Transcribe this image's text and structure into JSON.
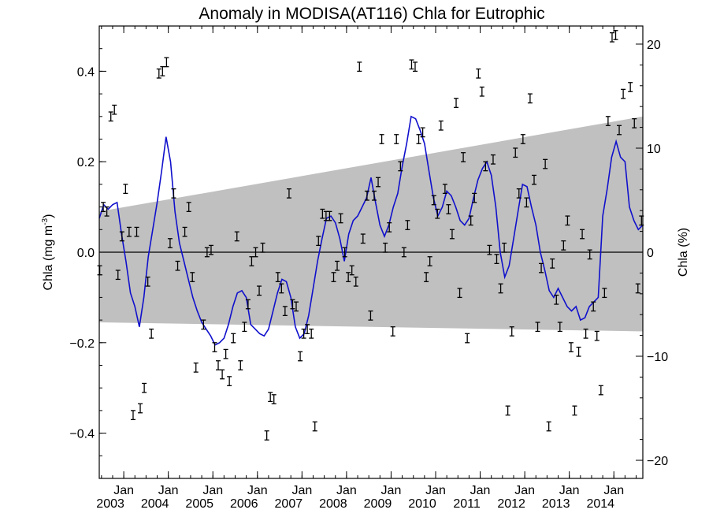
{
  "chart_data": {
    "type": "scatter",
    "title": "Anomaly in MODISA(AT116) Chla for Eutrophic",
    "ylabel_main": "Chla (mg m",
    "ylabel_sup": "-3",
    "ylabel_close": ")",
    "ylabel_right": "Chla (%)",
    "xlim": [
      2002.45,
      2014.65
    ],
    "ylim": [
      -0.5,
      0.5
    ],
    "ylim_right": [
      -21.74,
      21.74
    ],
    "y_ticks": [
      -0.4,
      -0.2,
      0.0,
      0.2,
      0.4
    ],
    "y_tick_labels": [
      "−0.4",
      "−0.2",
      "0.0",
      "0.2",
      "0.4"
    ],
    "y_right_ticks": [
      -20,
      -10,
      0,
      10,
      20
    ],
    "y_right_tick_labels": [
      "−20",
      "−10",
      "0",
      "10",
      "20"
    ],
    "x_ticks": [
      {
        "x": 2003.0,
        "month": "Jan",
        "year": "2003"
      },
      {
        "x": 2004.0,
        "month": "Jan",
        "year": "2004"
      },
      {
        "x": 2005.0,
        "month": "Jan",
        "year": "2005"
      },
      {
        "x": 2006.0,
        "month": "Jan",
        "year": "2006"
      },
      {
        "x": 2007.0,
        "month": "Jan",
        "year": "2007"
      },
      {
        "x": 2008.0,
        "month": "Jan",
        "year": "2008"
      },
      {
        "x": 2009.0,
        "month": "Jan",
        "year": "2009"
      },
      {
        "x": 2010.0,
        "month": "Jan",
        "year": "2010"
      },
      {
        "x": 2011.0,
        "month": "Jan",
        "year": "2011"
      },
      {
        "x": 2012.0,
        "month": "Jan",
        "year": "2012"
      },
      {
        "x": 2013.0,
        "month": "Jan",
        "year": "2013"
      },
      {
        "x": 2014.0,
        "month": "Jan",
        "year": "2014"
      }
    ],
    "zero_line": 0.0,
    "band": {
      "x": [
        2002.45,
        2014.65
      ],
      "upper": [
        0.09,
        0.3
      ],
      "lower": [
        -0.155,
        -0.175
      ],
      "color": "#c0c0c0"
    },
    "error_bar_half_height": 0.01,
    "points": [
      {
        "x": 2002.46,
        "y": -0.04
      },
      {
        "x": 2002.54,
        "y": 0.1
      },
      {
        "x": 2002.62,
        "y": 0.09
      },
      {
        "x": 2002.71,
        "y": 0.3
      },
      {
        "x": 2002.79,
        "y": 0.315
      },
      {
        "x": 2002.87,
        "y": -0.05
      },
      {
        "x": 2002.96,
        "y": 0.035
      },
      {
        "x": 2003.04,
        "y": 0.14
      },
      {
        "x": 2003.12,
        "y": 0.045
      },
      {
        "x": 2003.21,
        "y": -0.36
      },
      {
        "x": 2003.29,
        "y": 0.045
      },
      {
        "x": 2003.37,
        "y": -0.345
      },
      {
        "x": 2003.46,
        "y": -0.3
      },
      {
        "x": 2003.54,
        "y": -0.065
      },
      {
        "x": 2003.62,
        "y": -0.18
      },
      {
        "x": 2003.79,
        "y": 0.395
      },
      {
        "x": 2003.87,
        "y": 0.4
      },
      {
        "x": 2003.96,
        "y": 0.42
      },
      {
        "x": 2004.04,
        "y": 0.02
      },
      {
        "x": 2004.12,
        "y": 0.13
      },
      {
        "x": 2004.21,
        "y": -0.03
      },
      {
        "x": 2004.37,
        "y": 0.045
      },
      {
        "x": 2004.46,
        "y": 0.1
      },
      {
        "x": 2004.54,
        "y": -0.055
      },
      {
        "x": 2004.62,
        "y": -0.255
      },
      {
        "x": 2004.79,
        "y": -0.16
      },
      {
        "x": 2004.87,
        "y": 0.0
      },
      {
        "x": 2004.96,
        "y": 0.005
      },
      {
        "x": 2005.04,
        "y": -0.21
      },
      {
        "x": 2005.12,
        "y": -0.25
      },
      {
        "x": 2005.21,
        "y": -0.27
      },
      {
        "x": 2005.29,
        "y": -0.225
      },
      {
        "x": 2005.37,
        "y": -0.285
      },
      {
        "x": 2005.46,
        "y": -0.19
      },
      {
        "x": 2005.54,
        "y": 0.035
      },
      {
        "x": 2005.62,
        "y": -0.25
      },
      {
        "x": 2005.71,
        "y": -0.165
      },
      {
        "x": 2005.79,
        "y": -0.115
      },
      {
        "x": 2005.87,
        "y": -0.02
      },
      {
        "x": 2005.96,
        "y": 0.0
      },
      {
        "x": 2006.04,
        "y": -0.085
      },
      {
        "x": 2006.12,
        "y": 0.01
      },
      {
        "x": 2006.21,
        "y": -0.405
      },
      {
        "x": 2006.29,
        "y": -0.32
      },
      {
        "x": 2006.37,
        "y": -0.325
      },
      {
        "x": 2006.46,
        "y": -0.055
      },
      {
        "x": 2006.54,
        "y": -0.08
      },
      {
        "x": 2006.62,
        "y": -0.13
      },
      {
        "x": 2006.71,
        "y": 0.13
      },
      {
        "x": 2006.79,
        "y": -0.115
      },
      {
        "x": 2006.87,
        "y": -0.12
      },
      {
        "x": 2006.96,
        "y": -0.23
      },
      {
        "x": 2007.04,
        "y": -0.18
      },
      {
        "x": 2007.12,
        "y": -0.17
      },
      {
        "x": 2007.21,
        "y": -0.18
      },
      {
        "x": 2007.29,
        "y": -0.385
      },
      {
        "x": 2007.37,
        "y": 0.025
      },
      {
        "x": 2007.46,
        "y": 0.085
      },
      {
        "x": 2007.54,
        "y": 0.08
      },
      {
        "x": 2007.62,
        "y": 0.08
      },
      {
        "x": 2007.71,
        "y": -0.055
      },
      {
        "x": 2007.79,
        "y": -0.03
      },
      {
        "x": 2007.87,
        "y": 0.075
      },
      {
        "x": 2007.96,
        "y": 0.0
      },
      {
        "x": 2008.04,
        "y": -0.055
      },
      {
        "x": 2008.12,
        "y": -0.04
      },
      {
        "x": 2008.21,
        "y": -0.065
      },
      {
        "x": 2008.29,
        "y": 0.41
      },
      {
        "x": 2008.37,
        "y": 0.03
      },
      {
        "x": 2008.46,
        "y": 0.125
      },
      {
        "x": 2008.54,
        "y": -0.14
      },
      {
        "x": 2008.62,
        "y": 0.125
      },
      {
        "x": 2008.71,
        "y": 0.155
      },
      {
        "x": 2008.79,
        "y": 0.25
      },
      {
        "x": 2008.87,
        "y": 0.01
      },
      {
        "x": 2008.96,
        "y": 0.055
      },
      {
        "x": 2009.04,
        "y": -0.175
      },
      {
        "x": 2009.12,
        "y": 0.25
      },
      {
        "x": 2009.21,
        "y": 0.19
      },
      {
        "x": 2009.29,
        "y": 0.0
      },
      {
        "x": 2009.37,
        "y": 0.06
      },
      {
        "x": 2009.46,
        "y": 0.415
      },
      {
        "x": 2009.54,
        "y": 0.41
      },
      {
        "x": 2009.62,
        "y": 0.25
      },
      {
        "x": 2009.71,
        "y": 0.265
      },
      {
        "x": 2009.79,
        "y": -0.055
      },
      {
        "x": 2009.87,
        "y": -0.02
      },
      {
        "x": 2009.96,
        "y": 0.115
      },
      {
        "x": 2010.04,
        "y": 0.085
      },
      {
        "x": 2010.12,
        "y": 0.28
      },
      {
        "x": 2010.21,
        "y": 0.14
      },
      {
        "x": 2010.29,
        "y": 0.095
      },
      {
        "x": 2010.37,
        "y": 0.04
      },
      {
        "x": 2010.46,
        "y": 0.33
      },
      {
        "x": 2010.54,
        "y": -0.09
      },
      {
        "x": 2010.62,
        "y": 0.21
      },
      {
        "x": 2010.71,
        "y": -0.19
      },
      {
        "x": 2010.79,
        "y": 0.07
      },
      {
        "x": 2010.87,
        "y": 0.12
      },
      {
        "x": 2010.96,
        "y": 0.395
      },
      {
        "x": 2011.04,
        "y": 0.355
      },
      {
        "x": 2011.12,
        "y": 0.19
      },
      {
        "x": 2011.21,
        "y": 0.005
      },
      {
        "x": 2011.29,
        "y": 0.205
      },
      {
        "x": 2011.37,
        "y": -0.015
      },
      {
        "x": 2011.46,
        "y": -0.08
      },
      {
        "x": 2011.54,
        "y": 0.01
      },
      {
        "x": 2011.62,
        "y": -0.35
      },
      {
        "x": 2011.71,
        "y": -0.175
      },
      {
        "x": 2011.79,
        "y": 0.22
      },
      {
        "x": 2011.87,
        "y": 0.13
      },
      {
        "x": 2011.96,
        "y": 0.25
      },
      {
        "x": 2012.04,
        "y": 0.11
      },
      {
        "x": 2012.12,
        "y": 0.34
      },
      {
        "x": 2012.21,
        "y": 0.16
      },
      {
        "x": 2012.29,
        "y": -0.165
      },
      {
        "x": 2012.37,
        "y": -0.035
      },
      {
        "x": 2012.46,
        "y": 0.195
      },
      {
        "x": 2012.54,
        "y": -0.385
      },
      {
        "x": 2012.62,
        "y": -0.025
      },
      {
        "x": 2012.71,
        "y": -0.105
      },
      {
        "x": 2012.79,
        "y": -0.165
      },
      {
        "x": 2012.87,
        "y": 0.015
      },
      {
        "x": 2012.96,
        "y": 0.07
      },
      {
        "x": 2013.04,
        "y": -0.21
      },
      {
        "x": 2013.12,
        "y": -0.35
      },
      {
        "x": 2013.21,
        "y": -0.22
      },
      {
        "x": 2013.29,
        "y": 0.04
      },
      {
        "x": 2013.37,
        "y": -0.18
      },
      {
        "x": 2013.46,
        "y": -0.005
      },
      {
        "x": 2013.54,
        "y": -0.12
      },
      {
        "x": 2013.62,
        "y": -0.185
      },
      {
        "x": 2013.71,
        "y": -0.305
      },
      {
        "x": 2013.79,
        "y": -0.09
      },
      {
        "x": 2013.87,
        "y": 0.29
      },
      {
        "x": 2013.96,
        "y": 0.475
      },
      {
        "x": 2014.04,
        "y": 0.48
      },
      {
        "x": 2014.12,
        "y": 0.27
      },
      {
        "x": 2014.21,
        "y": 0.35
      },
      {
        "x": 2014.37,
        "y": 0.365
      },
      {
        "x": 2014.46,
        "y": 0.285
      },
      {
        "x": 2014.54,
        "y": -0.08
      },
      {
        "x": 2014.62,
        "y": 0.07
      }
    ],
    "smooth_line": {
      "color": "#1010cc",
      "x": [
        2002.45,
        2002.55,
        2002.65,
        2002.75,
        2002.85,
        2002.95,
        2003.05,
        2003.15,
        2003.25,
        2003.35,
        2003.45,
        2003.55,
        2003.65,
        2003.75,
        2003.85,
        2003.95,
        2004.05,
        2004.15,
        2004.25,
        2004.35,
        2004.45,
        2004.55,
        2004.65,
        2004.75,
        2004.85,
        2004.95,
        2005.05,
        2005.15,
        2005.25,
        2005.35,
        2005.45,
        2005.55,
        2005.65,
        2005.75,
        2005.85,
        2005.95,
        2006.05,
        2006.15,
        2006.25,
        2006.35,
        2006.45,
        2006.55,
        2006.65,
        2006.75,
        2006.85,
        2006.95,
        2007.05,
        2007.15,
        2007.25,
        2007.35,
        2007.45,
        2007.55,
        2007.65,
        2007.75,
        2007.85,
        2007.95,
        2008.05,
        2008.15,
        2008.25,
        2008.35,
        2008.45,
        2008.55,
        2008.65,
        2008.75,
        2008.85,
        2008.95,
        2009.05,
        2009.15,
        2009.25,
        2009.35,
        2009.45,
        2009.55,
        2009.65,
        2009.75,
        2009.85,
        2009.95,
        2010.05,
        2010.15,
        2010.25,
        2010.35,
        2010.45,
        2010.55,
        2010.65,
        2010.75,
        2010.85,
        2010.95,
        2011.05,
        2011.15,
        2011.25,
        2011.35,
        2011.45,
        2011.55,
        2011.65,
        2011.75,
        2011.85,
        2011.95,
        2012.05,
        2012.15,
        2012.25,
        2012.35,
        2012.45,
        2012.55,
        2012.65,
        2012.75,
        2012.85,
        2012.95,
        2013.05,
        2013.15,
        2013.25,
        2013.35,
        2013.45,
        2013.55,
        2013.65,
        2013.75,
        2013.85,
        2013.95,
        2014.05,
        2014.15,
        2014.25,
        2014.35,
        2014.45,
        2014.55,
        2014.65
      ],
      "y": [
        0.075,
        0.105,
        0.095,
        0.105,
        0.11,
        0.04,
        -0.02,
        -0.09,
        -0.12,
        -0.165,
        -0.1,
        -0.01,
        0.05,
        0.11,
        0.18,
        0.255,
        0.2,
        0.09,
        0.02,
        -0.02,
        -0.06,
        -0.1,
        -0.13,
        -0.155,
        -0.17,
        -0.185,
        -0.205,
        -0.2,
        -0.19,
        -0.16,
        -0.12,
        -0.09,
        -0.085,
        -0.1,
        -0.16,
        -0.17,
        -0.18,
        -0.185,
        -0.17,
        -0.13,
        -0.09,
        -0.06,
        -0.065,
        -0.1,
        -0.165,
        -0.19,
        -0.18,
        -0.14,
        -0.08,
        -0.02,
        0.03,
        0.075,
        0.08,
        0.065,
        0.03,
        -0.02,
        0.04,
        0.07,
        0.08,
        0.1,
        0.12,
        0.165,
        0.11,
        0.06,
        0.035,
        0.06,
        0.1,
        0.13,
        0.19,
        0.24,
        0.3,
        0.295,
        0.27,
        0.24,
        0.18,
        0.12,
        0.08,
        0.1,
        0.135,
        0.125,
        0.1,
        0.07,
        0.06,
        0.075,
        0.12,
        0.16,
        0.185,
        0.2,
        0.17,
        0.1,
        0.0,
        -0.055,
        -0.03,
        0.03,
        0.09,
        0.15,
        0.145,
        0.1,
        0.06,
        0.0,
        -0.04,
        -0.085,
        -0.1,
        -0.08,
        -0.1,
        -0.12,
        -0.13,
        -0.12,
        -0.15,
        -0.145,
        -0.12,
        -0.11,
        -0.1,
        0.08,
        0.14,
        0.21,
        0.245,
        0.21,
        0.2,
        0.1,
        0.07,
        0.05,
        0.06
      ]
    }
  }
}
